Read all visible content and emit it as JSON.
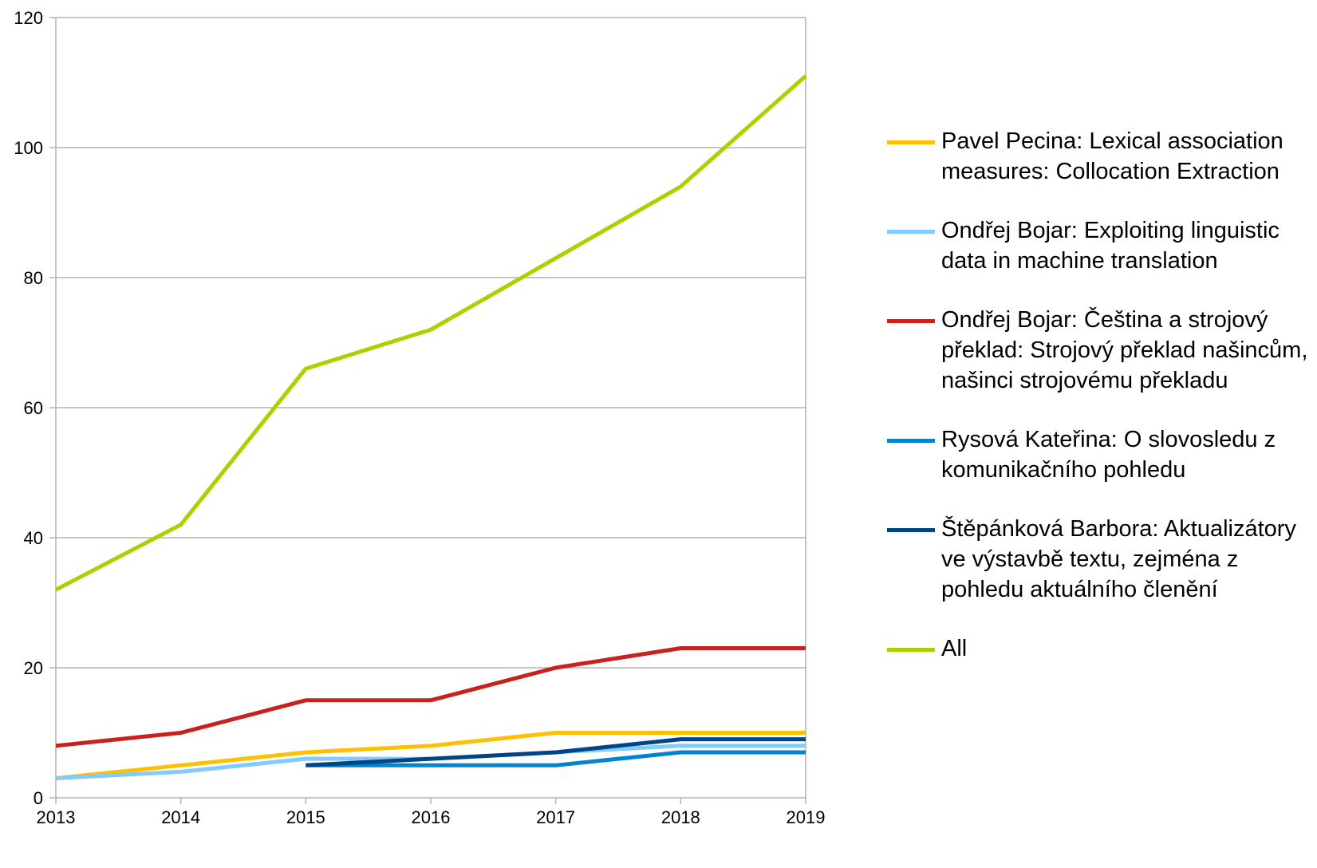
{
  "chart_data": {
    "type": "line",
    "title": "",
    "xlabel": "",
    "ylabel": "",
    "x": [
      2013,
      2014,
      2015,
      2016,
      2017,
      2018,
      2019
    ],
    "ylim": [
      0,
      120
    ],
    "yticks": [
      0,
      20,
      40,
      60,
      80,
      100,
      120
    ],
    "grid": "horizontal",
    "legend_position": "right",
    "series": [
      {
        "name": "Pavel Pecina: Lexical association measures: Collocation Extraction",
        "color": "#ffc000",
        "values": [
          3,
          5,
          7,
          8,
          10,
          10,
          10
        ]
      },
      {
        "name": "Ondřej Bojar: Exploiting linguistic data in machine translation",
        "color": "#83caff",
        "values": [
          3,
          4,
          6,
          6,
          7,
          8,
          8
        ]
      },
      {
        "name": "Ondřej Bojar: Čeština a strojový překlad: Strojový překlad našincům, našinci strojovému překladu",
        "color": "#c9211e",
        "values": [
          8,
          10,
          15,
          15,
          20,
          23,
          23
        ]
      },
      {
        "name": "Rysová Kateřina: O slovosledu z komunikačního pohledu",
        "color": "#0084d1",
        "values": [
          null,
          null,
          5,
          5,
          5,
          7,
          7
        ]
      },
      {
        "name": "Štěpánková Barbora: Aktualizátory ve výstavbě textu, zejména z pohledu aktuálního členění",
        "color": "#004586",
        "values": [
          null,
          null,
          5,
          6,
          7,
          9,
          9
        ]
      },
      {
        "name": "All",
        "color": "#aecf00",
        "values": [
          32,
          42,
          66,
          72,
          83,
          94,
          111
        ]
      }
    ]
  }
}
